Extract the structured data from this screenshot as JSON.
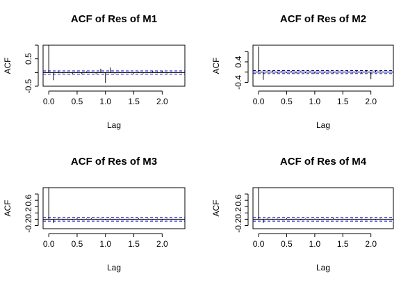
{
  "chart_data": [
    {
      "type": "acf",
      "title": "ACF of Res of M1",
      "xlabel": "Lag",
      "ylabel": "ACF",
      "xlim": [
        -0.1,
        2.4
      ],
      "ylim": [
        -0.5,
        1.0
      ],
      "x_ticks": [
        0.0,
        0.5,
        1.0,
        1.5,
        2.0
      ],
      "x_tick_labels": [
        "0.0",
        "0.5",
        "1.0",
        "1.5",
        "2.0"
      ],
      "y_ticks": [
        -0.5,
        0.5
      ],
      "y_tick_labels": [
        "-0.5",
        "0.5"
      ],
      "y_minor_ticks": [
        0.0,
        1.0
      ],
      "ci": 0.06,
      "lags": [
        0,
        0.0833,
        0.1667,
        0.25,
        0.3333,
        0.4167,
        0.5,
        0.5833,
        0.6667,
        0.75,
        0.8333,
        0.9167,
        1.0,
        1.0833,
        1.1667,
        1.25,
        1.3333,
        1.4167,
        1.5,
        1.5833,
        1.6667,
        1.75,
        1.8333,
        1.9167,
        2.0,
        2.0833,
        2.1667
      ],
      "acf": [
        1.0,
        -0.28,
        0.04,
        -0.03,
        0.02,
        -0.05,
        0.03,
        -0.06,
        0.04,
        0.02,
        -0.05,
        0.14,
        -0.38,
        0.18,
        -0.04,
        0.03,
        -0.02,
        0.03,
        -0.04,
        0.03,
        -0.03,
        0.02,
        0.05,
        0.03,
        0.06,
        -0.03,
        0.02
      ]
    },
    {
      "type": "acf",
      "title": "ACF of Res of M2",
      "xlabel": "Lag",
      "ylabel": "ACF",
      "xlim": [
        -0.1,
        2.4
      ],
      "ylim": [
        -0.55,
        1.05
      ],
      "x_ticks": [
        0.0,
        0.5,
        1.0,
        1.5,
        2.0
      ],
      "x_tick_labels": [
        "0.0",
        "0.5",
        "1.0",
        "1.5",
        "2.0"
      ],
      "y_ticks": [
        -0.4,
        0.4
      ],
      "y_tick_labels": [
        "-0.4",
        "0.4"
      ],
      "y_minor_ticks": [
        0.0,
        0.8
      ],
      "ci": 0.06,
      "lags": [
        0,
        0.0833,
        0.1667,
        0.25,
        0.3333,
        0.4167,
        0.5,
        0.5833,
        0.6667,
        0.75,
        0.8333,
        0.9167,
        1.0,
        1.0833,
        1.1667,
        1.25,
        1.3333,
        1.4167,
        1.5,
        1.5833,
        1.6667,
        1.75,
        1.8333,
        1.9167,
        2.0,
        2.0833,
        2.1667
      ],
      "acf": [
        1.0,
        -0.3,
        0.03,
        0.05,
        -0.04,
        0.04,
        -0.03,
        0.04,
        -0.05,
        0.03,
        -0.04,
        0.03,
        -0.06,
        0.02,
        -0.03,
        0.03,
        -0.04,
        0.03,
        -0.02,
        0.04,
        -0.03,
        0.05,
        -0.04,
        0.08,
        -0.28,
        0.05,
        0.03
      ]
    },
    {
      "type": "acf",
      "title": "ACF of Res of M3",
      "xlabel": "Lag",
      "ylabel": "ACF",
      "xlim": [
        -0.1,
        2.4
      ],
      "ylim": [
        -0.3,
        1.0
      ],
      "x_ticks": [
        0.0,
        0.5,
        1.0,
        1.5,
        2.0
      ],
      "x_tick_labels": [
        "0.0",
        "0.5",
        "1.0",
        "1.5",
        "2.0"
      ],
      "y_ticks": [
        -0.2,
        0.2,
        0.6
      ],
      "y_tick_labels": [
        "-0.2",
        "0.2",
        "0.6"
      ],
      "y_minor_ticks": [
        0.0,
        0.4,
        0.8
      ],
      "ci": 0.06,
      "lags": [
        0,
        0.0833,
        0.1667,
        0.25,
        0.3333,
        0.4167,
        0.5,
        0.5833,
        0.6667,
        0.75,
        0.8333,
        0.9167,
        1.0,
        1.0833,
        1.1667,
        1.25,
        1.3333,
        1.4167,
        1.5,
        1.5833,
        1.6667,
        1.75,
        1.8333,
        1.9167,
        2.0,
        2.0833,
        2.1667
      ],
      "acf": [
        1.0,
        -0.12,
        0.03,
        -0.03,
        0.02,
        -0.02,
        0.03,
        -0.02,
        0.02,
        0.03,
        -0.02,
        0.02,
        -0.03,
        0.02,
        -0.02,
        0.02,
        -0.02,
        0.02,
        -0.02,
        0.03,
        -0.02,
        0.02,
        -0.02,
        0.02,
        -0.03,
        0.02,
        -0.02
      ]
    },
    {
      "type": "acf",
      "title": "ACF of Res of M4",
      "xlabel": "Lag",
      "ylabel": "ACF",
      "xlim": [
        -0.1,
        2.4
      ],
      "ylim": [
        -0.3,
        1.0
      ],
      "x_ticks": [
        0.0,
        0.5,
        1.0,
        1.5,
        2.0
      ],
      "x_tick_labels": [
        "0.0",
        "0.5",
        "1.0",
        "1.5",
        "2.0"
      ],
      "y_ticks": [
        -0.2,
        0.2,
        0.6
      ],
      "y_tick_labels": [
        "-0.2",
        "0.2",
        "0.6"
      ],
      "y_minor_ticks": [
        0.0,
        0.4,
        0.8
      ],
      "ci": 0.06,
      "lags": [
        0,
        0.0833,
        0.1667,
        0.25,
        0.3333,
        0.4167,
        0.5,
        0.5833,
        0.6667,
        0.75,
        0.8333,
        0.9167,
        1.0,
        1.0833,
        1.1667,
        1.25,
        1.3333,
        1.4167,
        1.5,
        1.5833,
        1.6667,
        1.75,
        1.8333,
        1.9167,
        2.0,
        2.0833,
        2.1667
      ],
      "acf": [
        1.0,
        -0.12,
        0.03,
        -0.02,
        0.02,
        -0.02,
        0.03,
        -0.02,
        0.02,
        -0.03,
        0.02,
        -0.02,
        0.02,
        -0.02,
        0.02,
        -0.02,
        0.03,
        -0.02,
        0.02,
        -0.02,
        0.02,
        -0.02,
        0.02,
        -0.02,
        0.02,
        -0.02,
        0.02
      ]
    }
  ],
  "colors": {
    "background": "#ffffff",
    "axes": "#000000",
    "confidence_band": "#0000cc"
  }
}
